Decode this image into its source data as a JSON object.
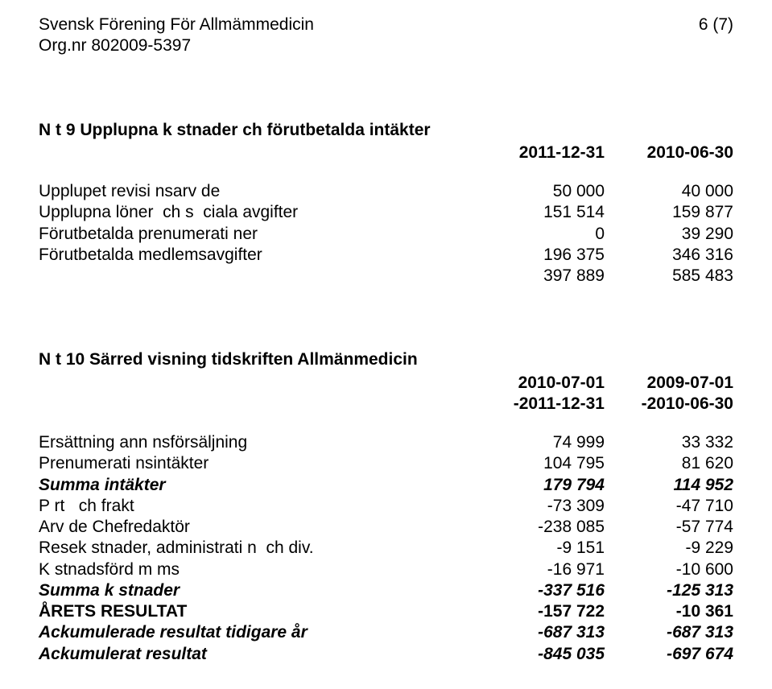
{
  "header": {
    "org_name": "Svensk Förening För Allmämmedicin",
    "page_num": "6 (7)",
    "org_nr": "Org.nr 802009-5397"
  },
  "note9": {
    "title": "N t 9 Upplupna k stnader  ch förutbetalda intäkter",
    "date_cols": {
      "c1": "2011-12-31",
      "c2": "2010-06-30"
    },
    "rows": [
      {
        "label": "Upplupet revisi nsarv de",
        "c1": "50 000",
        "c2": "40 000"
      },
      {
        "label": "Upplupna löner  ch s  ciala avgifter",
        "c1": "151 514",
        "c2": "159 877"
      },
      {
        "label": "Förutbetalda prenumerati ner",
        "c1": "0",
        "c2": "39 290"
      },
      {
        "label": "Förutbetalda medlemsavgifter",
        "c1": "196 375",
        "c2": "346 316"
      }
    ],
    "total": {
      "c1": "397 889",
      "c2": "585 483"
    }
  },
  "note10": {
    "title": "N t 10 Särred visning tidskriften Allmänmedicin",
    "period_cols_line1": {
      "c1": "2010-07-01",
      "c2": "2009-07-01"
    },
    "period_cols_line2": {
      "c1": "-2011-12-31",
      "c2": "-2010-06-30"
    },
    "rows_top": [
      {
        "label": "Ersättning ann nsförsäljning",
        "c1": "74 999",
        "c2": "33 332"
      },
      {
        "label": "Prenumerati nsintäkter",
        "c1": "104 795",
        "c2": "81 620"
      }
    ],
    "summa_intakter": {
      "label": "Summa intäkter",
      "c1": "179 794",
      "c2": "114 952"
    },
    "rows_mid": [
      {
        "label": "P rt   ch frakt",
        "c1": "-73 309",
        "c2": "-47 710"
      },
      {
        "label": "Arv de Chefredaktör",
        "c1": "-238 085",
        "c2": "-57 774"
      },
      {
        "label": "Resek stnader, administrati n  ch div.",
        "c1": "-9 151",
        "c2": "-9 229"
      },
      {
        "label": "K stnadsförd m ms",
        "c1": "-16 971",
        "c2": "-10 600"
      }
    ],
    "summa_kostnader": {
      "label": "Summa k stnader",
      "c1": "-337 516",
      "c2": "-125 313"
    },
    "arets_resultat": {
      "label": "ÅRETS RESULTAT",
      "c1": "-157 722",
      "c2": "-10 361"
    },
    "ack_tidigare": {
      "label": "Ackumulerade resultat tidigare år",
      "c1": "-687 313",
      "c2": "-687 313"
    },
    "ack_resultat": {
      "label": "Ackumulerat resultat",
      "c1": "-845 035",
      "c2": "-697 674"
    }
  }
}
